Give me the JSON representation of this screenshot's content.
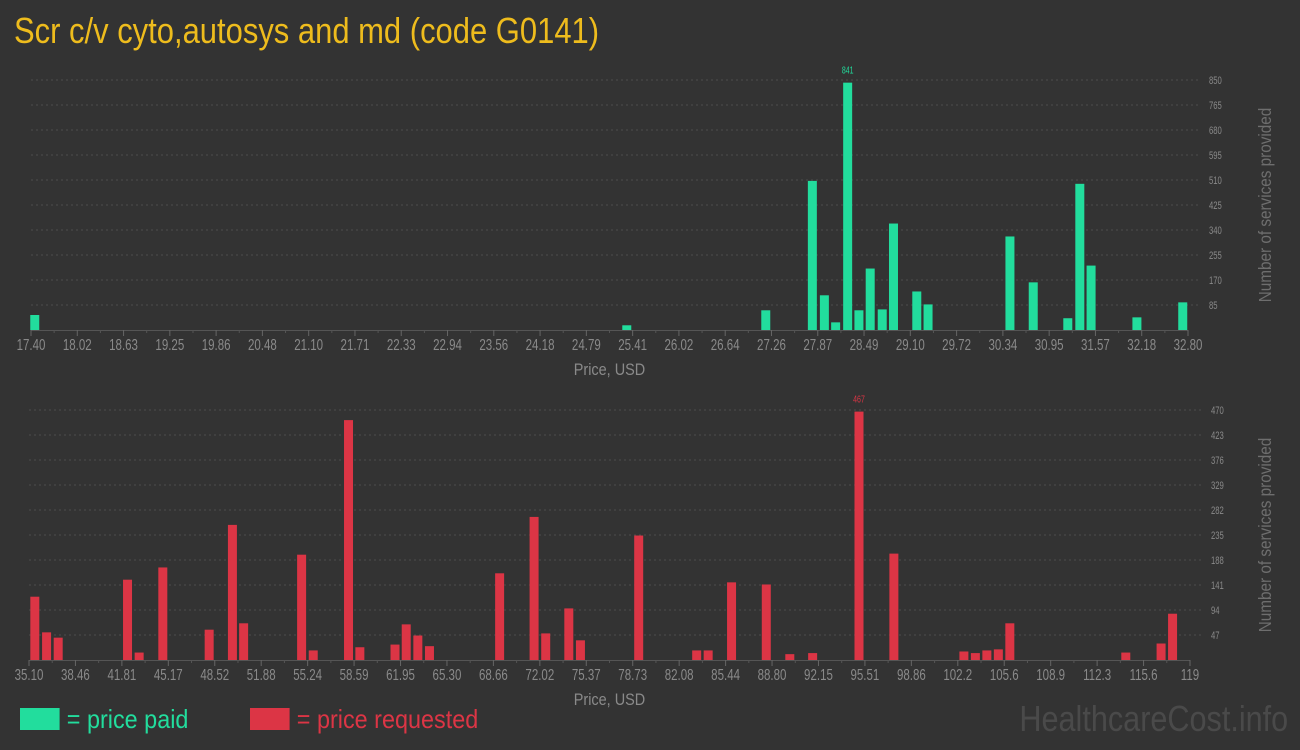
{
  "title": "Scr c/v cyto,autosys and md (code G0141)",
  "legend": [
    {
      "label": "= price paid",
      "color": "#22dd9d"
    },
    {
      "label": "= price requested",
      "color": "#dc3545"
    }
  ],
  "watermark": "HealthcareCost.info",
  "chart_data": [
    {
      "type": "bar",
      "xlabel": "Price, USD",
      "ylabel": "Number of services provided",
      "color": "#22dd9d",
      "xlim": [
        17.4,
        32.8
      ],
      "ylim": [
        0,
        850
      ],
      "grid": true,
      "x_ticks": [
        "17.40",
        "18.02",
        "18.63",
        "19.25",
        "19.86",
        "20.48",
        "21.10",
        "21.71",
        "22.33",
        "22.94",
        "23.56",
        "24.18",
        "24.79",
        "25.41",
        "26.02",
        "26.64",
        "27.26",
        "27.87",
        "28.49",
        "29.10",
        "29.72",
        "30.34",
        "30.95",
        "31.57",
        "32.18",
        "32.80"
      ],
      "y_ticks": [
        "85",
        "170",
        "255",
        "340",
        "425",
        "510",
        "595",
        "680",
        "765",
        "850"
      ],
      "peak_label": "841",
      "points": [
        {
          "x": 17.45,
          "y": 51
        },
        {
          "x": 25.33,
          "y": 16
        },
        {
          "x": 27.18,
          "y": 67
        },
        {
          "x": 27.8,
          "y": 507
        },
        {
          "x": 27.96,
          "y": 118
        },
        {
          "x": 28.11,
          "y": 26
        },
        {
          "x": 28.27,
          "y": 841
        },
        {
          "x": 28.42,
          "y": 67
        },
        {
          "x": 28.57,
          "y": 209
        },
        {
          "x": 28.73,
          "y": 70
        },
        {
          "x": 28.88,
          "y": 362
        },
        {
          "x": 29.19,
          "y": 131
        },
        {
          "x": 29.34,
          "y": 87
        },
        {
          "x": 30.43,
          "y": 318
        },
        {
          "x": 30.74,
          "y": 162
        },
        {
          "x": 31.2,
          "y": 40
        },
        {
          "x": 31.36,
          "y": 497
        },
        {
          "x": 31.51,
          "y": 219
        },
        {
          "x": 32.12,
          "y": 43
        },
        {
          "x": 32.73,
          "y": 94
        }
      ]
    },
    {
      "type": "bar",
      "xlabel": "Price, USD",
      "ylabel": "Number of services provided",
      "color": "#dc3545",
      "xlim": [
        35.1,
        119
      ],
      "ylim": [
        0,
        470
      ],
      "grid": true,
      "x_ticks": [
        "35.10",
        "38.46",
        "41.81",
        "45.17",
        "48.52",
        "51.88",
        "55.24",
        "58.59",
        "61.95",
        "65.30",
        "68.66",
        "72.02",
        "75.37",
        "78.73",
        "82.08",
        "85.44",
        "88.80",
        "92.15",
        "95.51",
        "98.86",
        "102.2",
        "105.6",
        "108.9",
        "112.3",
        "115.6",
        "119"
      ],
      "y_ticks": [
        "47",
        "94",
        "141",
        "188",
        "235",
        "282",
        "329",
        "376",
        "423",
        "470"
      ],
      "peak_label": "467",
      "points": [
        {
          "x": 35.52,
          "y": 119
        },
        {
          "x": 36.37,
          "y": 52
        },
        {
          "x": 37.21,
          "y": 42
        },
        {
          "x": 42.22,
          "y": 151
        },
        {
          "x": 43.06,
          "y": 14
        },
        {
          "x": 44.77,
          "y": 174
        },
        {
          "x": 48.12,
          "y": 57
        },
        {
          "x": 49.8,
          "y": 254
        },
        {
          "x": 50.61,
          "y": 69
        },
        {
          "x": 54.8,
          "y": 198
        },
        {
          "x": 55.64,
          "y": 18
        },
        {
          "x": 58.19,
          "y": 451
        },
        {
          "x": 59.01,
          "y": 24
        },
        {
          "x": 61.55,
          "y": 29
        },
        {
          "x": 62.36,
          "y": 67
        },
        {
          "x": 63.2,
          "y": 46
        },
        {
          "x": 64.04,
          "y": 26
        },
        {
          "x": 69.11,
          "y": 163
        },
        {
          "x": 71.6,
          "y": 269
        },
        {
          "x": 72.44,
          "y": 50
        },
        {
          "x": 74.11,
          "y": 97
        },
        {
          "x": 74.95,
          "y": 37
        },
        {
          "x": 79.16,
          "y": 234
        },
        {
          "x": 83.35,
          "y": 18
        },
        {
          "x": 84.18,
          "y": 18
        },
        {
          "x": 85.87,
          "y": 146
        },
        {
          "x": 88.38,
          "y": 142
        },
        {
          "x": 90.08,
          "y": 11
        },
        {
          "x": 91.73,
          "y": 13
        },
        {
          "x": 95.08,
          "y": 467
        },
        {
          "x": 97.6,
          "y": 200
        },
        {
          "x": 102.66,
          "y": 16
        },
        {
          "x": 103.49,
          "y": 13
        },
        {
          "x": 104.32,
          "y": 18
        },
        {
          "x": 105.15,
          "y": 20
        },
        {
          "x": 105.98,
          "y": 69
        },
        {
          "x": 114.36,
          "y": 14
        },
        {
          "x": 116.91,
          "y": 31
        },
        {
          "x": 117.74,
          "y": 87
        }
      ]
    }
  ]
}
